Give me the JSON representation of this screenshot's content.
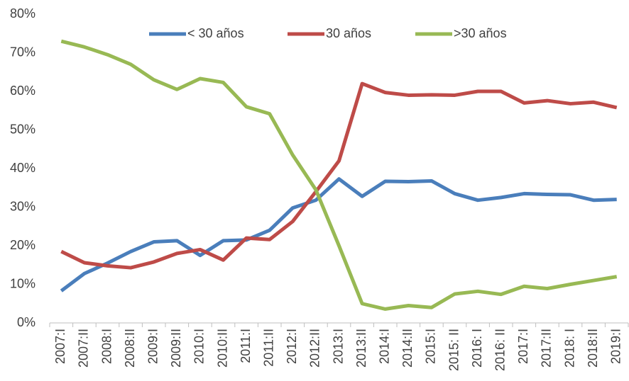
{
  "chart_data": {
    "type": "line",
    "categories": [
      "2007:I",
      "2007:II",
      "2008:I",
      "2008:II",
      "2009:I",
      "2009:II",
      "2010:I",
      "2010:II",
      "2011:I",
      "2011:II",
      "2012:I",
      "2012:II",
      "2013:I",
      "2013:II",
      "2014:I",
      "2014:II",
      "2015:I",
      "2015: II",
      "2016: I",
      "2016: II",
      "2017:I",
      "2017:II",
      "2018: I",
      "2018:II",
      "2019:I"
    ],
    "series": [
      {
        "name": "< 30 años",
        "color": "#4a7ebb",
        "values": [
          8.3,
          12.8,
          15.5,
          18.5,
          21,
          21.3,
          17.5,
          21.3,
          21.5,
          24,
          29.8,
          31.8,
          37.3,
          32.8,
          36.7,
          36.6,
          36.8,
          33.5,
          31.8,
          32.5,
          33.5,
          33.3,
          33.2,
          31.8,
          32
        ]
      },
      {
        "name": "30 años",
        "color": "#be4b48",
        "values": [
          18.5,
          15.6,
          14.8,
          14.3,
          15.8,
          18,
          19,
          16.3,
          22,
          21.6,
          26.3,
          34,
          42,
          62,
          59.7,
          59,
          59.1,
          59,
          60,
          60,
          57,
          57.6,
          56.8,
          57.2,
          55.8
        ]
      },
      {
        "name": ">30 años",
        "color": "#98b954",
        "values": [
          73,
          71.5,
          69.5,
          67,
          63,
          60.5,
          63.3,
          62.3,
          56,
          54.2,
          43.5,
          34.5,
          20,
          5,
          3.6,
          4.5,
          4,
          7.5,
          8.2,
          7.4,
          9.5,
          8.9,
          10,
          11,
          12
        ]
      }
    ],
    "ylim": [
      0,
      80
    ],
    "yticks": [
      {
        "value": 0,
        "label": "0%"
      },
      {
        "value": 10,
        "label": "10%"
      },
      {
        "value": 20,
        "label": "20%"
      },
      {
        "value": 30,
        "label": "30%"
      },
      {
        "value": 40,
        "label": "40%"
      },
      {
        "value": 50,
        "label": "50%"
      },
      {
        "value": 60,
        "label": "60%"
      },
      {
        "value": 70,
        "label": "70%"
      },
      {
        "value": 80,
        "label": "80%"
      }
    ],
    "grid": false,
    "legend": "top"
  }
}
